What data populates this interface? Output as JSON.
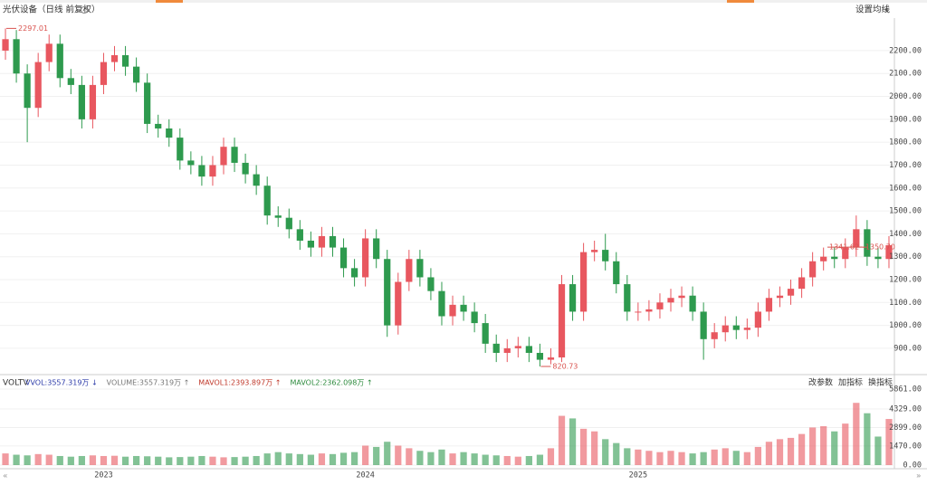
{
  "chart_data": {
    "type": "candlestick",
    "title": "光伏设备（日线 前复权）",
    "ma_setting": "设置均线",
    "indicator": "VOLTV",
    "volume_legend": [
      {
        "label": "VVOL:3557.319万 ↓",
        "color": "#2b3aa8"
      },
      {
        "label": "VOLUME:3557.319万 ↑",
        "color": "#777777"
      },
      {
        "label": "MAVOL1:2393.897万 ↑",
        "color": "#c0392b"
      },
      {
        "label": "MAVOL2:2362.098万 ↑",
        "color": "#2e8b3e"
      }
    ],
    "tools": [
      "改参数",
      "加指标",
      "换指标"
    ],
    "up_color": "#e8575f",
    "down_color": "#2e9a4e",
    "grid": true,
    "categories": [
      null,
      null,
      null,
      null,
      null,
      null,
      null,
      null,
      null,
      "2023",
      null,
      null,
      null,
      null,
      null,
      null,
      null,
      null,
      null,
      null,
      null,
      null,
      null,
      null,
      null,
      null,
      null,
      null,
      null,
      null,
      null,
      null,
      null,
      "2024",
      null,
      null,
      null,
      null,
      null,
      null,
      null,
      null,
      null,
      null,
      null,
      null,
      null,
      null,
      null,
      null,
      null,
      null,
      null,
      null,
      null,
      null,
      null,
      null,
      "2025",
      null,
      null,
      null,
      null,
      null,
      null,
      null,
      null,
      null,
      null,
      null,
      null,
      null,
      null,
      null,
      null,
      null,
      null,
      null,
      null,
      null,
      null,
      null
    ],
    "open": [
      2200,
      2250,
      2100,
      1950,
      2150,
      2230,
      2080,
      2050,
      1900,
      2050,
      2150,
      2180,
      2130,
      2060,
      1880,
      1860,
      1820,
      1720,
      1700,
      1650,
      1700,
      1780,
      1710,
      1660,
      1610,
      1480,
      1470,
      1420,
      1370,
      1340,
      1390,
      1340,
      1250,
      1210,
      1380,
      1290,
      1000,
      1190,
      1290,
      1210,
      1150,
      1040,
      1090,
      1060,
      1010,
      920,
      880,
      900,
      910,
      880,
      850,
      860,
      1180,
      1060,
      1320,
      1330,
      1280,
      1180,
      1060,
      1060,
      1070,
      1100,
      1120,
      1130,
      1060,
      940,
      970,
      1000,
      980,
      990,
      1060,
      1120,
      1130,
      1160,
      1210,
      1280,
      1300,
      1290,
      1340,
      1420,
      1300,
      1290
    ],
    "high": [
      2297.01,
      2290,
      2140,
      2190,
      2270,
      2270,
      2120,
      2090,
      2090,
      2190,
      2220,
      2220,
      2170,
      2100,
      1920,
      1900,
      1860,
      1760,
      1740,
      1740,
      1820,
      1820,
      1750,
      1700,
      1650,
      1520,
      1510,
      1460,
      1410,
      1430,
      1430,
      1380,
      1290,
      1420,
      1420,
      1330,
      1230,
      1330,
      1330,
      1250,
      1190,
      1130,
      1130,
      1100,
      1050,
      960,
      940,
      950,
      950,
      920,
      900,
      1220,
      1220,
      1360,
      1370,
      1400,
      1320,
      1220,
      1100,
      1110,
      1140,
      1160,
      1170,
      1170,
      1100,
      1010,
      1040,
      1040,
      1030,
      1100,
      1160,
      1170,
      1200,
      1250,
      1320,
      1340,
      1340,
      1380,
      1480,
      1460,
      1340,
      1390
    ],
    "low": [
      2160,
      2060,
      1800,
      1910,
      2110,
      2040,
      2010,
      1860,
      1860,
      2010,
      2110,
      2090,
      2020,
      1840,
      1820,
      1780,
      1680,
      1660,
      1610,
      1610,
      1660,
      1670,
      1620,
      1570,
      1440,
      1430,
      1380,
      1330,
      1300,
      1300,
      1300,
      1210,
      1170,
      1170,
      1250,
      950,
      960,
      1150,
      1170,
      1110,
      1000,
      1000,
      1020,
      970,
      880,
      840,
      840,
      860,
      840,
      820.73,
      830,
      840,
      1020,
      1020,
      1280,
      1240,
      1140,
      1020,
      1020,
      1020,
      1030,
      1060,
      1080,
      1020,
      850,
      900,
      930,
      940,
      940,
      950,
      1020,
      1080,
      1090,
      1120,
      1170,
      1240,
      1250,
      1250,
      1300,
      1260,
      1250,
      1250
    ],
    "close": [
      2250,
      2100,
      1950,
      2150,
      2230,
      2080,
      2050,
      1900,
      2050,
      2150,
      2180,
      2130,
      2060,
      1880,
      1860,
      1820,
      1720,
      1700,
      1650,
      1700,
      1780,
      1710,
      1660,
      1610,
      1480,
      1470,
      1420,
      1370,
      1340,
      1390,
      1340,
      1250,
      1210,
      1380,
      1290,
      1000,
      1190,
      1290,
      1210,
      1150,
      1040,
      1090,
      1060,
      1010,
      920,
      880,
      900,
      910,
      880,
      850,
      860,
      1180,
      1060,
      1320,
      1330,
      1280,
      1180,
      1060,
      1060,
      1070,
      1100,
      1120,
      1130,
      1060,
      940,
      970,
      1000,
      980,
      990,
      1060,
      1120,
      1130,
      1160,
      1210,
      1280,
      1300,
      1290,
      1340,
      1420,
      1300,
      1290,
      1350
    ],
    "ylim": [
      793,
      2342
    ],
    "yticks": [
      {
        "value": 900,
        "label": "900.00"
      },
      {
        "value": 1000,
        "label": "1000.00"
      },
      {
        "value": 1100,
        "label": "1100.00"
      },
      {
        "value": 1200,
        "label": "1200.00"
      },
      {
        "value": 1300,
        "label": "1300.00"
      },
      {
        "value": 1400,
        "label": "1400.00"
      },
      {
        "value": 1500,
        "label": "1500.00"
      },
      {
        "value": 1600,
        "label": "1600.00"
      },
      {
        "value": 1700,
        "label": "1700.00"
      },
      {
        "value": 1800,
        "label": "1800.00"
      },
      {
        "value": 1900,
        "label": "1900.00"
      },
      {
        "value": 2000,
        "label": "2000.00"
      },
      {
        "value": 2100,
        "label": "2100.00"
      },
      {
        "value": 2200,
        "label": "2200.00"
      }
    ],
    "annotations": [
      {
        "text": "2297.01",
        "index": 0,
        "value": 2297.01
      },
      {
        "text": "820.73",
        "index": 49,
        "value": 820.73
      },
      {
        "text": "1341.62~1350.70",
        "index": 79,
        "value": 1341.62
      }
    ],
    "volume": {
      "values": [
        900,
        800,
        750,
        850,
        800,
        700,
        650,
        700,
        750,
        700,
        720,
        650,
        700,
        680,
        650,
        600,
        620,
        650,
        700,
        650,
        600,
        620,
        650,
        700,
        900,
        1000,
        900,
        850,
        800,
        900,
        850,
        950,
        1000,
        1500,
        1400,
        1800,
        1500,
        1300,
        1100,
        1000,
        1200,
        900,
        1000,
        900,
        800,
        750,
        700,
        650,
        700,
        800,
        1300,
        3800,
        3600,
        2800,
        2600,
        2000,
        1700,
        1300,
        1200,
        1100,
        1000,
        1100,
        1000,
        900,
        1000,
        1200,
        1300,
        1100,
        1000,
        1400,
        1800,
        2000,
        2100,
        2400,
        2900,
        3000,
        2600,
        3200,
        4800,
        4000,
        2200,
        3557.319
      ],
      "ylim": [
        0,
        6700
      ],
      "yticks": [
        {
          "value": 0,
          "label": "0.00"
        },
        {
          "value": 1470,
          "label": "1470.00"
        },
        {
          "value": 2899,
          "label": "2899.00"
        },
        {
          "value": 4329,
          "label": "4329.00"
        },
        {
          "value": 5861,
          "label": "5861.00"
        }
      ]
    }
  }
}
